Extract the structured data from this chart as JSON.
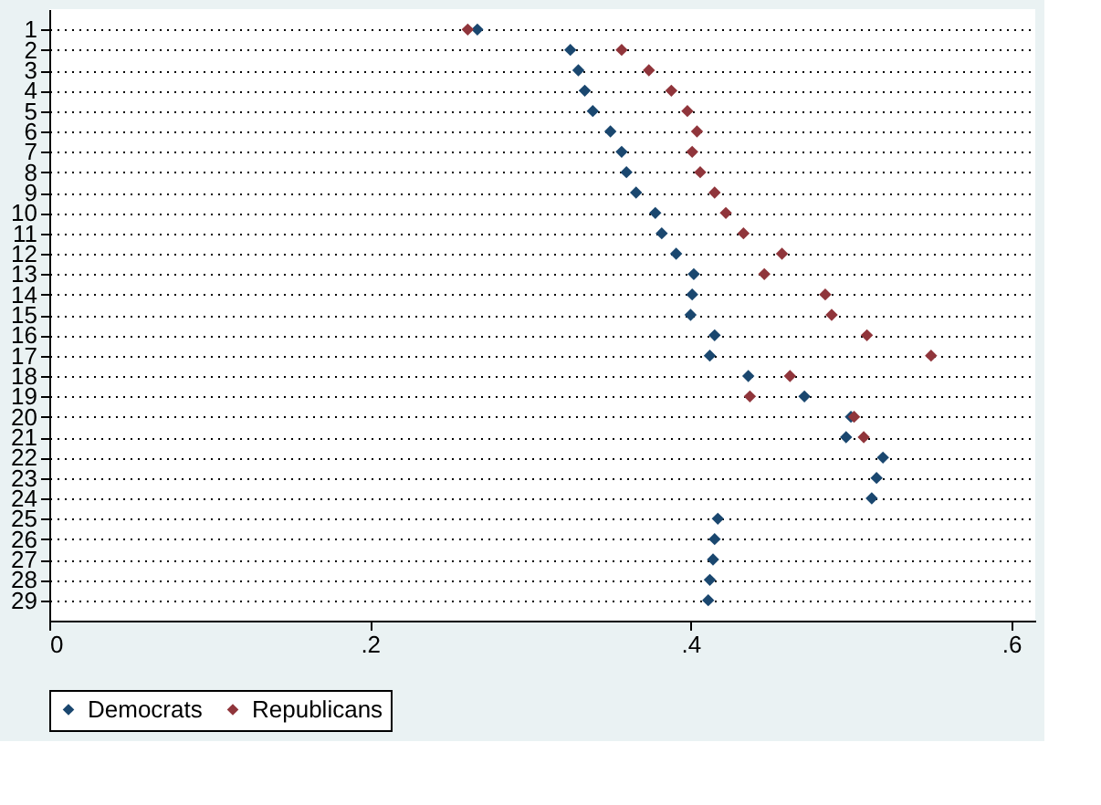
{
  "chart_data": {
    "type": "scatter",
    "orientation": "horizontal",
    "categories": [
      "1",
      "2",
      "3",
      "4",
      "5",
      "6",
      "7",
      "8",
      "9",
      "10",
      "11",
      "12",
      "13",
      "14",
      "15",
      "16",
      "17",
      "18",
      "19",
      "20",
      "21",
      "22",
      "23",
      "24",
      "25",
      "26",
      "27",
      "28",
      "29"
    ],
    "series": [
      {
        "name": "Democrats",
        "color": "#1a476f",
        "values": [
          0.267,
          0.325,
          0.33,
          0.334,
          0.339,
          0.35,
          0.357,
          0.36,
          0.366,
          0.378,
          0.382,
          0.391,
          0.402,
          0.401,
          0.4,
          0.415,
          0.412,
          0.436,
          0.471,
          0.5,
          0.497,
          0.52,
          0.516,
          0.513,
          0.417,
          0.415,
          0.414,
          0.412,
          0.411
        ]
      },
      {
        "name": "Republicans",
        "color": "#90353b",
        "values": [
          0.261,
          0.357,
          0.374,
          0.388,
          0.398,
          0.404,
          0.401,
          0.406,
          0.415,
          0.422,
          0.433,
          0.457,
          0.446,
          0.484,
          0.488,
          0.51,
          0.55,
          0.462,
          0.437,
          0.502,
          0.508,
          null,
          null,
          null,
          null,
          null,
          null,
          null,
          null
        ]
      }
    ],
    "xlim": [
      0,
      0.615
    ],
    "xticks": [
      0,
      {
        "value": 0.2,
        "label": ".2"
      },
      {
        "value": 0.4,
        "label": ".4"
      },
      {
        "value": 0.6,
        "label": ".6"
      }
    ],
    "grid": "y",
    "line_style": "dotted",
    "marker": "diamond",
    "legend": "bottom"
  }
}
